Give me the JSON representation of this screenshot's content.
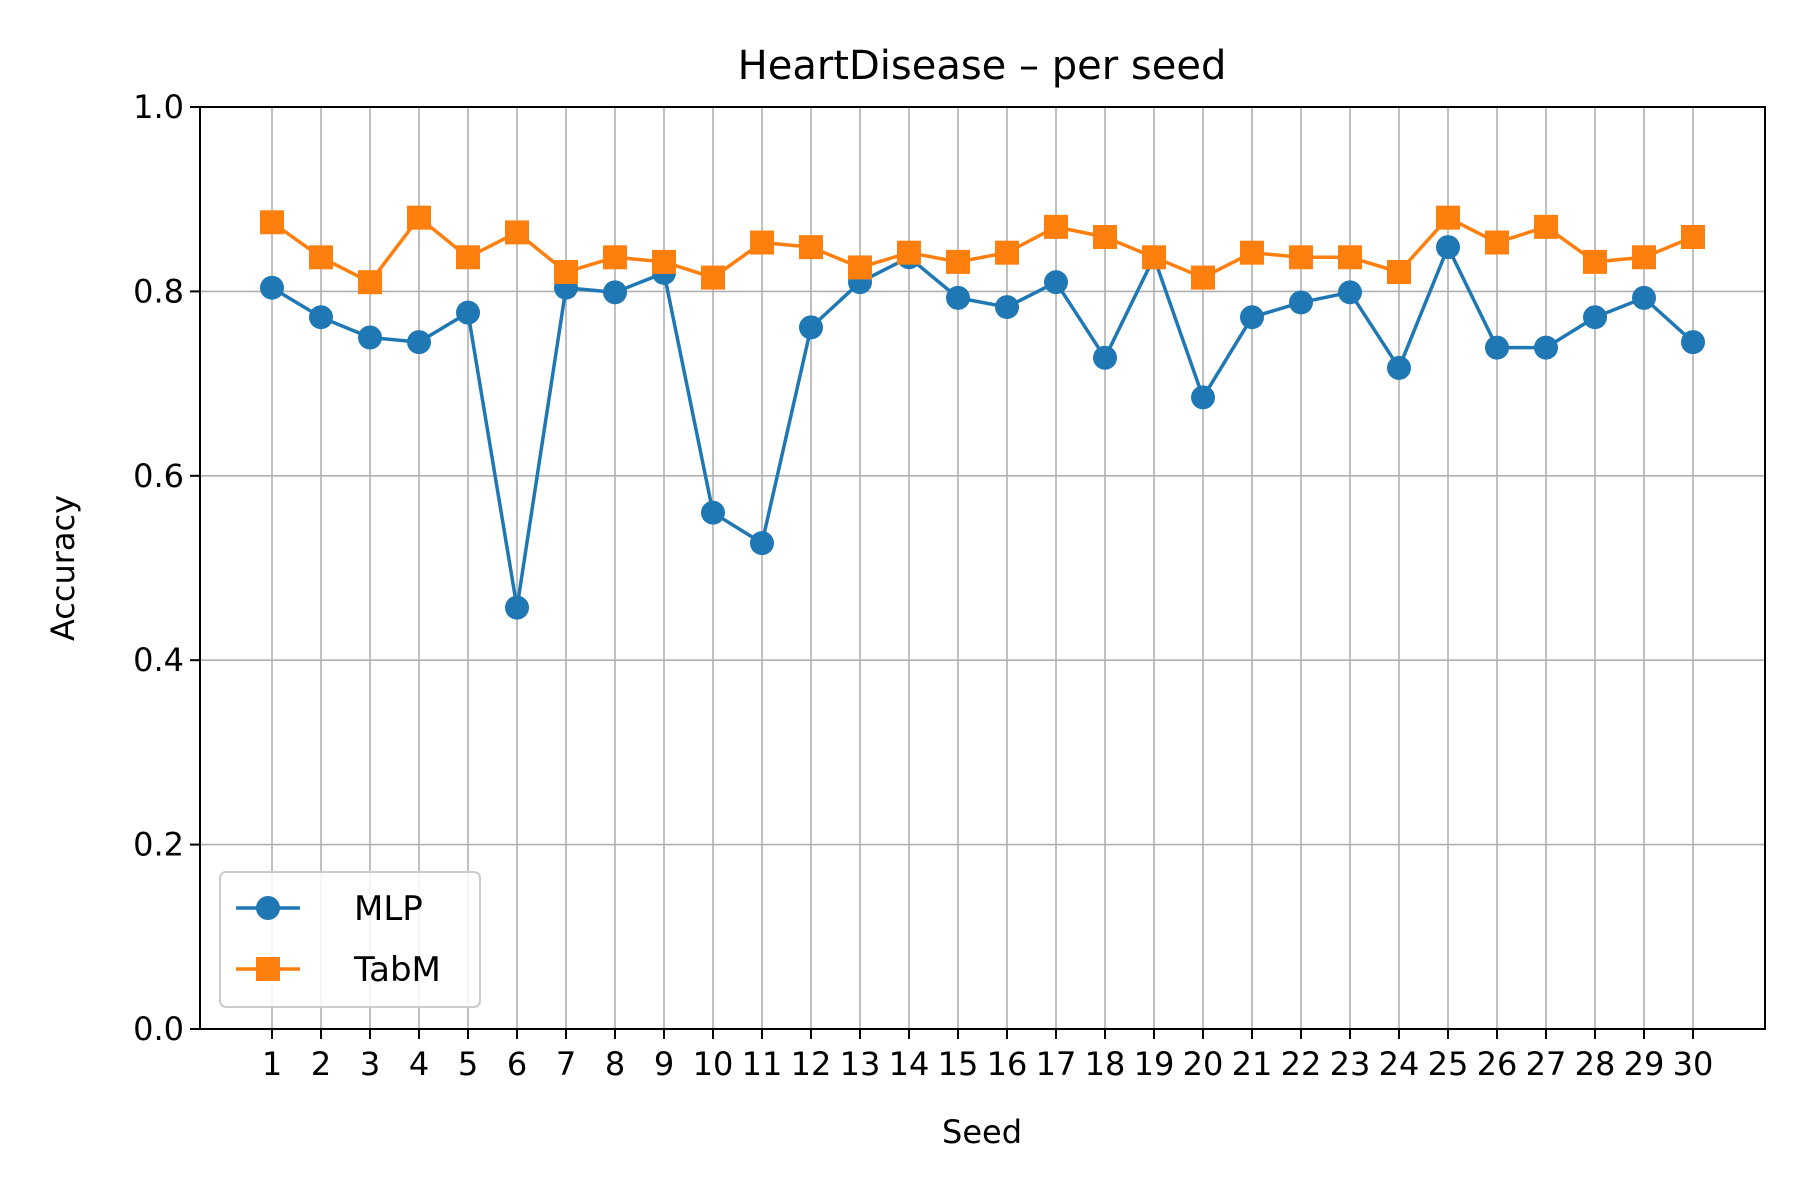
{
  "chart_data": {
    "type": "line",
    "title": "HeartDisease – per seed",
    "xlabel": "Seed",
    "ylabel": "Accuracy",
    "x": [
      1,
      2,
      3,
      4,
      5,
      6,
      7,
      8,
      9,
      10,
      11,
      12,
      13,
      14,
      15,
      16,
      17,
      18,
      19,
      20,
      21,
      22,
      23,
      24,
      25,
      26,
      27,
      28,
      29,
      30
    ],
    "x_tick_labels": [
      "1",
      "2",
      "3",
      "4",
      "5",
      "6",
      "7",
      "8",
      "9",
      "10",
      "11",
      "12",
      "13",
      "14",
      "15",
      "16",
      "17",
      "18",
      "19",
      "20",
      "21",
      "22",
      "23",
      "24",
      "25",
      "26",
      "27",
      "28",
      "29",
      "30"
    ],
    "ylim": [
      0.0,
      1.0
    ],
    "y_ticks": [
      0.0,
      0.2,
      0.4,
      0.6,
      0.8,
      1.0
    ],
    "y_tick_labels": [
      "0.0",
      "0.2",
      "0.4",
      "0.6",
      "0.8",
      "1.0"
    ],
    "grid": true,
    "legend_position": "lower-left",
    "series": [
      {
        "name": "MLP",
        "color": "#1f77b4",
        "marker": "circle",
        "values": [
          0.804,
          0.772,
          0.75,
          0.745,
          0.777,
          0.457,
          0.804,
          0.799,
          0.82,
          0.56,
          0.527,
          0.761,
          0.81,
          0.837,
          0.793,
          0.783,
          0.81,
          0.728,
          0.837,
          0.685,
          0.772,
          0.788,
          0.799,
          0.717,
          0.848,
          0.739,
          0.739,
          0.772,
          0.793,
          0.745
        ]
      },
      {
        "name": "TabM",
        "color": "#ff7f0e",
        "marker": "square",
        "values": [
          0.875,
          0.837,
          0.81,
          0.88,
          0.837,
          0.864,
          0.821,
          0.837,
          0.832,
          0.815,
          0.853,
          0.848,
          0.826,
          0.842,
          0.832,
          0.842,
          0.87,
          0.859,
          0.837,
          0.815,
          0.842,
          0.837,
          0.837,
          0.821,
          0.88,
          0.853,
          0.87,
          0.832,
          0.837,
          0.859
        ]
      }
    ]
  }
}
